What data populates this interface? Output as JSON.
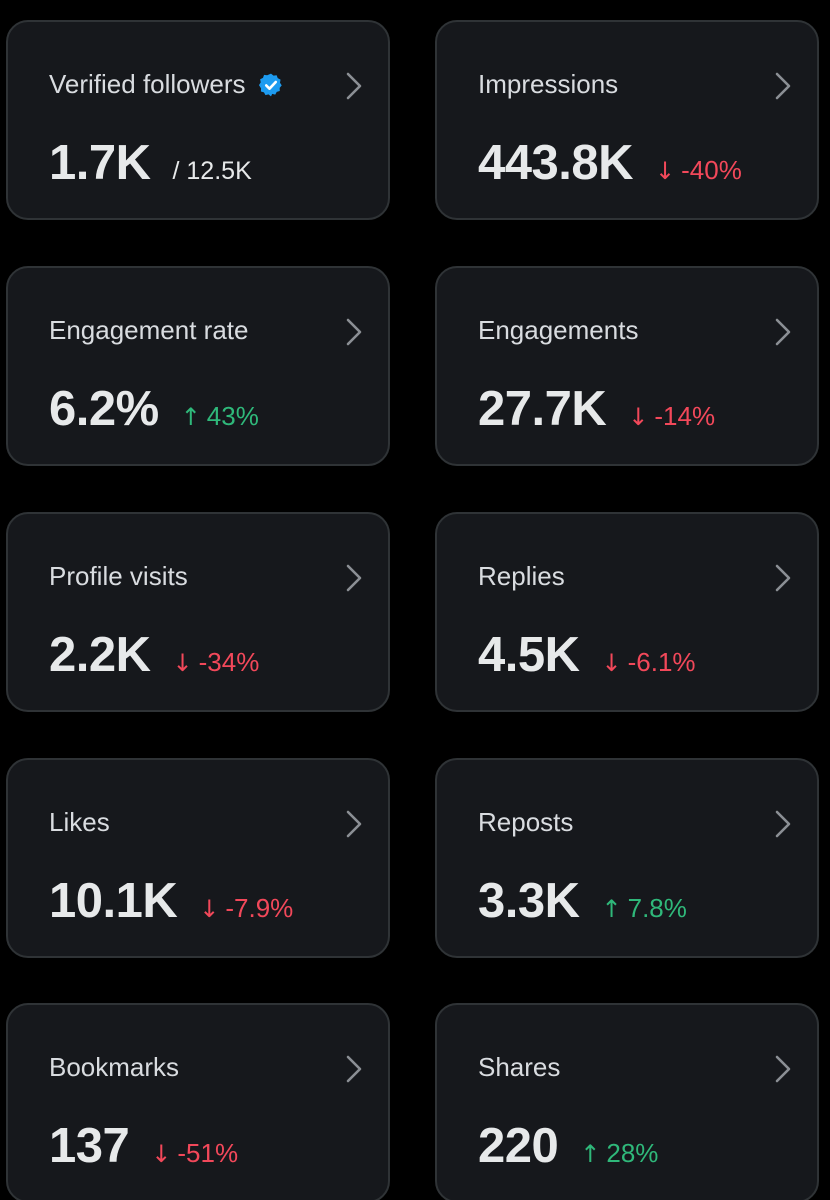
{
  "colors": {
    "background": "#000000",
    "card": "#16181c",
    "border": "#2f3336",
    "up": "#2fb87a",
    "down": "#f2485a",
    "verified": "#1d9bf0"
  },
  "cards": [
    {
      "name": "verified-followers",
      "label": "Verified followers",
      "value": "1.7K",
      "total": "/ 12.5K",
      "verified_icon": "verified-badge-icon"
    },
    {
      "name": "impressions",
      "label": "Impressions",
      "value": "443.8K",
      "delta": "-40%",
      "direction": "down"
    },
    {
      "name": "engagement-rate",
      "label": "Engagement rate",
      "value": "6.2%",
      "delta": "43%",
      "direction": "up"
    },
    {
      "name": "engagements",
      "label": "Engagements",
      "value": "27.7K",
      "delta": "-14%",
      "direction": "down"
    },
    {
      "name": "profile-visits",
      "label": "Profile visits",
      "value": "2.2K",
      "delta": "-34%",
      "direction": "down"
    },
    {
      "name": "replies",
      "label": "Replies",
      "value": "4.5K",
      "delta": "-6.1%",
      "direction": "down"
    },
    {
      "name": "likes",
      "label": "Likes",
      "value": "10.1K",
      "delta": "-7.9%",
      "direction": "down"
    },
    {
      "name": "reposts",
      "label": "Reposts",
      "value": "3.3K",
      "delta": "7.8%",
      "direction": "up"
    },
    {
      "name": "bookmarks",
      "label": "Bookmarks",
      "value": "137",
      "delta": "-51%",
      "direction": "down"
    },
    {
      "name": "shares",
      "label": "Shares",
      "value": "220",
      "delta": "28%",
      "direction": "up"
    }
  ]
}
